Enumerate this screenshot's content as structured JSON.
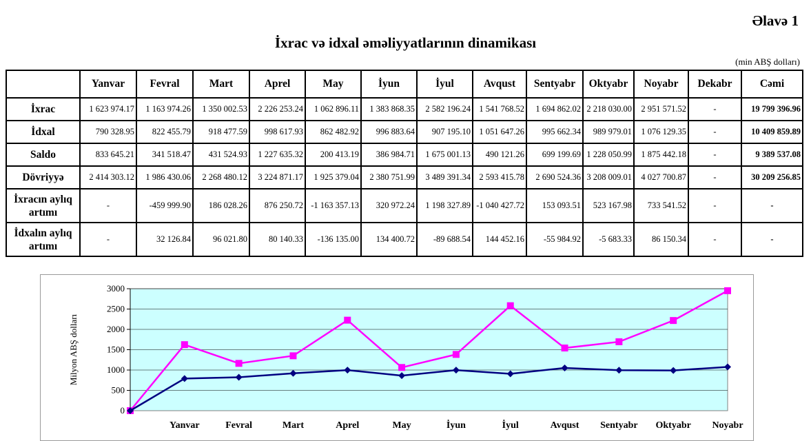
{
  "appendix": "Əlavə 1",
  "title": "İxrac və idxal əməliyyatlarının dinamikası",
  "unit": "(min ABŞ dolları)",
  "table": {
    "headers": [
      "",
      "Yanvar",
      "Fevral",
      "Mart",
      "Aprel",
      "May",
      "İyun",
      "İyul",
      "Avqust",
      "Sentyabr",
      "Oktyabr",
      "Noyabr",
      "Dekabr",
      "Cəmi"
    ],
    "rows": [
      {
        "label": "İxrac",
        "values": [
          "1 623 974.17",
          "1 163 974.26",
          "1 350 002.53",
          "2 226 253.24",
          "1 062 896.11",
          "1 383 868.35",
          "2 582 196.24",
          "1 541 768.52",
          "1 694 862.02",
          "2 218 030.00",
          "2 951 571.52",
          "-",
          "19 799 396.96"
        ]
      },
      {
        "label": "İdxal",
        "values": [
          "790 328.95",
          "822 455.79",
          "918 477.59",
          "998 617.93",
          "862 482.92",
          "996 883.64",
          "907 195.10",
          "1 051 647.26",
          "995 662.34",
          "989 979.01",
          "1 076 129.35",
          "-",
          "10 409 859.89"
        ]
      },
      {
        "label": "Saldo",
        "values": [
          "833 645.21",
          "341 518.47",
          "431 524.93",
          "1 227 635.32",
          "200 413.19",
          "386 984.71",
          "1 675 001.13",
          "490 121.26",
          "699 199.69",
          "1 228 050.99",
          "1 875 442.18",
          "-",
          "9 389 537.08"
        ]
      },
      {
        "label": "Dövriyyə",
        "values": [
          "2 414 303.12",
          "1 986 430.06",
          "2 268 480.12",
          "3 224 871.17",
          "1 925 379.04",
          "2 380 751.99",
          "3 489 391.34",
          "2 593 415.78",
          "2 690 524.36",
          "3 208 009.01",
          "4 027 700.87",
          "-",
          "30 209 256.85"
        ]
      },
      {
        "label": "İxracın aylıq artımı",
        "values": [
          "-",
          "-459 999.90",
          "186 028.26",
          "876 250.72",
          "-1 163 357.13",
          "320 972.24",
          "1 198 327.89",
          "-1 040 427.72",
          "153 093.51",
          "523 167.98",
          "733 541.52",
          "-",
          "-"
        ]
      },
      {
        "label": "İdxalın aylıq artımı",
        "values": [
          "-",
          "32 126.84",
          "96 021.80",
          "80 140.33",
          "-136 135.00",
          "134 400.72",
          "-89 688.54",
          "144 452.16",
          "-55 984.92",
          "-5 683.33",
          "86 150.34",
          "-",
          "-"
        ]
      }
    ]
  },
  "chart_data": {
    "type": "line",
    "title": "",
    "xlabel": "",
    "ylabel": "Milyon ABŞ dolları",
    "ylim": [
      0,
      3000
    ],
    "yticks": [
      "0",
      "500",
      "1000",
      "1500",
      "2000",
      "2500",
      "3000"
    ],
    "categories": [
      "",
      "Yanvar",
      "Fevral",
      "Mart",
      "Aprel",
      "May",
      "İyun",
      "İyul",
      "Avqust",
      "Sentyabr",
      "Oktyabr",
      "Noyabr"
    ],
    "grid": true,
    "series": [
      {
        "name": "İxrac",
        "color": "#ff00ff",
        "marker": "square",
        "values": [
          0,
          1624.0,
          1164.0,
          1350.0,
          2226.3,
          1062.9,
          1383.9,
          2582.2,
          1541.8,
          1694.9,
          2218.0,
          2951.6
        ]
      },
      {
        "name": "İdxal",
        "color": "#000080",
        "marker": "diamond",
        "values": [
          0,
          790.3,
          822.5,
          918.5,
          998.6,
          862.5,
          996.9,
          907.2,
          1051.6,
          995.7,
          990.0,
          1076.1
        ]
      }
    ],
    "plot_background": "#ccffff"
  }
}
